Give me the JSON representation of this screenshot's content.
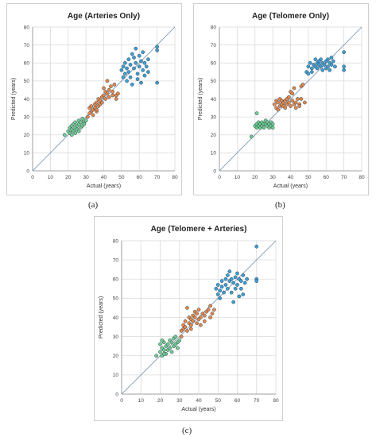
{
  "chart_data": [
    {
      "type": "scatter",
      "title": "Age (Arteries Only)",
      "xlabel": "Actual (years)",
      "ylabel": "Predicted (years)",
      "xlim": [
        0,
        80
      ],
      "ylim": [
        0,
        80
      ],
      "xticks": [
        "0",
        "10",
        "20",
        "30",
        "40",
        "50",
        "60",
        "70",
        "80"
      ],
      "yticks": [
        "0",
        "10",
        "20",
        "30",
        "40",
        "50",
        "60",
        "70",
        "80"
      ],
      "grid": true,
      "caption": "(a)",
      "series": [
        {
          "color": "#6fcf8f",
          "points": [
            [
              18,
              20
            ],
            [
              20,
              22
            ],
            [
              21,
              24
            ],
            [
              21,
              21
            ],
            [
              22,
              25
            ],
            [
              22,
              23
            ],
            [
              23,
              26
            ],
            [
              23,
              22
            ],
            [
              24,
              24
            ],
            [
              24,
              27
            ],
            [
              25,
              25
            ],
            [
              25,
              23
            ],
            [
              26,
              26
            ],
            [
              26,
              28
            ],
            [
              27,
              24
            ],
            [
              27,
              27
            ],
            [
              28,
              25
            ],
            [
              28,
              29
            ],
            [
              29,
              27
            ],
            [
              29,
              26
            ],
            [
              30,
              28
            ],
            [
              22,
              20
            ],
            [
              24,
              21
            ],
            [
              26,
              22
            ]
          ]
        },
        {
          "color": "#e8894a",
          "points": [
            [
              31,
              30
            ],
            [
              32,
              35
            ],
            [
              33,
              33
            ],
            [
              33,
              36
            ],
            [
              34,
              34
            ],
            [
              34,
              31
            ],
            [
              35,
              37
            ],
            [
              35,
              35
            ],
            [
              36,
              38
            ],
            [
              36,
              33
            ],
            [
              37,
              36
            ],
            [
              37,
              40
            ],
            [
              38,
              39
            ],
            [
              38,
              37
            ],
            [
              39,
              41
            ],
            [
              39,
              38
            ],
            [
              40,
              42
            ],
            [
              40,
              46
            ],
            [
              41,
              44
            ],
            [
              41,
              40
            ],
            [
              42,
              50
            ],
            [
              42,
              43
            ],
            [
              43,
              45
            ],
            [
              43,
              41
            ],
            [
              44,
              47
            ],
            [
              45,
              42
            ],
            [
              45,
              44
            ],
            [
              46,
              48
            ],
            [
              47,
              40
            ],
            [
              47,
              42
            ],
            [
              48,
              43
            ],
            [
              32,
              32
            ],
            [
              36,
              34
            ]
          ]
        },
        {
          "color": "#3ea0d6",
          "points": [
            [
              50,
              56
            ],
            [
              51,
              52
            ],
            [
              51,
              58
            ],
            [
              52,
              60
            ],
            [
              52,
              54
            ],
            [
              53,
              57
            ],
            [
              53,
              50
            ],
            [
              54,
              62
            ],
            [
              54,
              55
            ],
            [
              55,
              59
            ],
            [
              55,
              52
            ],
            [
              56,
              65
            ],
            [
              56,
              48
            ],
            [
              57,
              63
            ],
            [
              57,
              57
            ],
            [
              58,
              68
            ],
            [
              58,
              60
            ],
            [
              59,
              54
            ],
            [
              59,
              51
            ],
            [
              60,
              64
            ],
            [
              60,
              58
            ],
            [
              61,
              61
            ],
            [
              61,
              49
            ],
            [
              62,
              66
            ],
            [
              62,
              56
            ],
            [
              63,
              60
            ],
            [
              63,
              53
            ],
            [
              64,
              58
            ],
            [
              65,
              62
            ],
            [
              65,
              55
            ],
            [
              70,
              69
            ],
            [
              70,
              67
            ],
            [
              70,
              49
            ]
          ]
        }
      ]
    },
    {
      "type": "scatter",
      "title": "Age (Telomere Only)",
      "xlabel": "Actual (years)",
      "ylabel": "Predicted (years)",
      "xlim": [
        0,
        80
      ],
      "ylim": [
        0,
        80
      ],
      "xticks": [
        "0",
        "10",
        "20",
        "30",
        "40",
        "50",
        "60",
        "70",
        "80"
      ],
      "yticks": [
        "0",
        "10",
        "20",
        "30",
        "40",
        "50",
        "60",
        "70",
        "80"
      ],
      "grid": true,
      "caption": "(b)",
      "series": [
        {
          "color": "#6fcf8f",
          "points": [
            [
              18,
              19
            ],
            [
              20,
              25
            ],
            [
              21,
              26
            ],
            [
              21,
              24
            ],
            [
              22,
              27
            ],
            [
              22,
              25
            ],
            [
              23,
              26
            ],
            [
              23,
              24
            ],
            [
              24,
              27
            ],
            [
              24,
              25
            ],
            [
              25,
              26
            ],
            [
              25,
              24
            ],
            [
              26,
              28
            ],
            [
              26,
              26
            ],
            [
              27,
              25
            ],
            [
              27,
              27
            ],
            [
              28,
              26
            ],
            [
              28,
              24
            ],
            [
              29,
              27
            ],
            [
              29,
              25
            ],
            [
              30,
              26
            ],
            [
              21,
              32
            ],
            [
              30,
              24
            ]
          ]
        },
        {
          "color": "#e8894a",
          "points": [
            [
              31,
              37
            ],
            [
              32,
              39
            ],
            [
              32,
              35
            ],
            [
              33,
              38
            ],
            [
              33,
              34
            ],
            [
              34,
              40
            ],
            [
              34,
              36
            ],
            [
              35,
              37
            ],
            [
              35,
              39
            ],
            [
              36,
              36
            ],
            [
              36,
              38
            ],
            [
              37,
              39
            ],
            [
              37,
              35
            ],
            [
              38,
              40
            ],
            [
              38,
              37
            ],
            [
              39,
              41
            ],
            [
              39,
              38
            ],
            [
              40,
              44
            ],
            [
              40,
              36
            ],
            [
              41,
              43
            ],
            [
              41,
              39
            ],
            [
              42,
              46
            ],
            [
              42,
              37
            ],
            [
              43,
              38
            ],
            [
              43,
              35
            ],
            [
              44,
              40
            ],
            [
              45,
              37
            ],
            [
              45,
              36
            ],
            [
              46,
              40
            ],
            [
              46,
              47
            ],
            [
              47,
              48
            ],
            [
              48,
              38
            ]
          ]
        },
        {
          "color": "#3ea0d6",
          "points": [
            [
              49,
              55
            ],
            [
              50,
              58
            ],
            [
              50,
              54
            ],
            [
              51,
              60
            ],
            [
              52,
              57
            ],
            [
              52,
              55
            ],
            [
              53,
              59
            ],
            [
              54,
              62
            ],
            [
              54,
              58
            ],
            [
              55,
              60
            ],
            [
              55,
              57
            ],
            [
              56,
              61
            ],
            [
              56,
              59
            ],
            [
              57,
              58
            ],
            [
              57,
              62
            ],
            [
              58,
              60
            ],
            [
              58,
              56
            ],
            [
              59,
              59
            ],
            [
              60,
              61
            ],
            [
              60,
              57
            ],
            [
              61,
              58
            ],
            [
              61,
              62
            ],
            [
              62,
              60
            ],
            [
              62,
              56
            ],
            [
              63,
              59
            ],
            [
              63,
              63
            ],
            [
              64,
              61
            ],
            [
              65,
              58
            ],
            [
              70,
              66
            ],
            [
              70,
              58
            ],
            [
              70,
              56
            ]
          ]
        }
      ]
    },
    {
      "type": "scatter",
      "title": "Age (Telomere + Arteries)",
      "xlabel": "Actual (years)",
      "ylabel": "Predicted (years)",
      "xlim": [
        0,
        80
      ],
      "ylim": [
        0,
        80
      ],
      "xticks": [
        "0",
        "10",
        "20",
        "30",
        "40",
        "50",
        "60",
        "70",
        "80"
      ],
      "yticks": [
        "0",
        "10",
        "20",
        "30",
        "40",
        "50",
        "60",
        "70",
        "80"
      ],
      "grid": true,
      "caption": "(c)",
      "series": [
        {
          "color": "#6fcf8f",
          "points": [
            [
              18,
              20
            ],
            [
              20,
              22
            ],
            [
              20,
              26
            ],
            [
              21,
              24
            ],
            [
              21,
              20
            ],
            [
              22,
              27
            ],
            [
              22,
              23
            ],
            [
              23,
              25
            ],
            [
              23,
              21
            ],
            [
              24,
              26
            ],
            [
              24,
              23
            ],
            [
              25,
              28
            ],
            [
              25,
              24
            ],
            [
              26,
              27
            ],
            [
              26,
              22
            ],
            [
              27,
              29
            ],
            [
              27,
              25
            ],
            [
              28,
              26
            ],
            [
              28,
              30
            ],
            [
              29,
              27
            ],
            [
              29,
              24
            ],
            [
              30,
              28
            ],
            [
              21,
              28
            ],
            [
              22,
              21
            ]
          ]
        },
        {
          "color": "#e8894a",
          "points": [
            [
              31,
              30
            ],
            [
              32,
              34
            ],
            [
              32,
              36
            ],
            [
              33,
              35
            ],
            [
              33,
              38
            ],
            [
              34,
              33
            ],
            [
              34,
              45
            ],
            [
              35,
              37
            ],
            [
              35,
              40
            ],
            [
              36,
              36
            ],
            [
              36,
              39
            ],
            [
              37,
              41
            ],
            [
              37,
              38
            ],
            [
              38,
              40
            ],
            [
              38,
              43
            ],
            [
              39,
              37
            ],
            [
              39,
              42
            ],
            [
              40,
              39
            ],
            [
              40,
              44
            ],
            [
              41,
              40
            ],
            [
              41,
              36
            ],
            [
              42,
              42
            ],
            [
              43,
              38
            ],
            [
              43,
              41
            ],
            [
              44,
              43
            ],
            [
              45,
              44
            ],
            [
              46,
              40
            ],
            [
              46,
              46
            ],
            [
              47,
              42
            ],
            [
              48,
              44
            ],
            [
              31,
              33
            ],
            [
              36,
              34
            ]
          ]
        },
        {
          "color": "#3ea0d6",
          "points": [
            [
              49,
              55
            ],
            [
              50,
              52
            ],
            [
              50,
              57
            ],
            [
              51,
              50
            ],
            [
              51,
              54
            ],
            [
              52,
              56
            ],
            [
              52,
              59
            ],
            [
              53,
              53
            ],
            [
              54,
              60
            ],
            [
              54,
              57
            ],
            [
              55,
              62
            ],
            [
              55,
              55
            ],
            [
              56,
              64
            ],
            [
              56,
              59
            ],
            [
              57,
              60
            ],
            [
              57,
              53
            ],
            [
              58,
              58
            ],
            [
              58,
              48
            ],
            [
              59,
              61
            ],
            [
              59,
              55
            ],
            [
              60,
              63
            ],
            [
              60,
              57
            ],
            [
              61,
              60
            ],
            [
              61,
              51
            ],
            [
              62,
              59
            ],
            [
              62,
              55
            ],
            [
              63,
              62
            ],
            [
              63,
              52
            ],
            [
              64,
              58
            ],
            [
              65,
              60
            ],
            [
              70,
              77
            ],
            [
              70,
              60
            ],
            [
              70,
              59
            ]
          ]
        }
      ]
    }
  ]
}
